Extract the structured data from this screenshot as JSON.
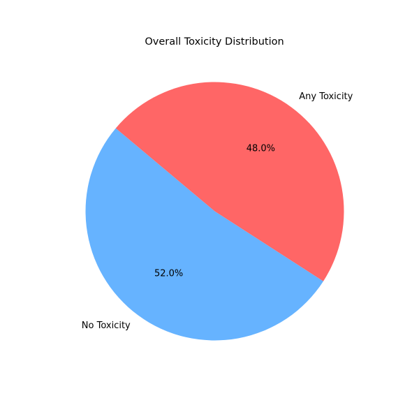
{
  "chart_data": {
    "type": "pie",
    "title": "Overall Toxicity Distribution",
    "slices": [
      {
        "label": "No Toxicity",
        "value": 52.0,
        "pct_label": "52.0%",
        "color": "#66b3ff"
      },
      {
        "label": "Any Toxicity",
        "value": 48.0,
        "pct_label": "48.0%",
        "color": "#ff6666"
      }
    ],
    "start_angle_deg": 140,
    "direction": "counterclockwise"
  }
}
